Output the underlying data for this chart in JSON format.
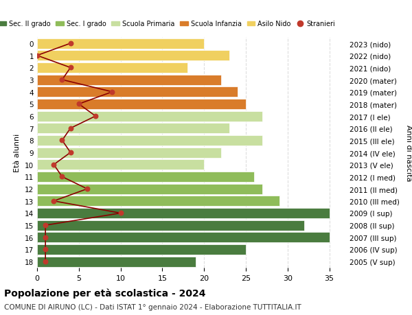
{
  "ages": [
    18,
    17,
    16,
    15,
    14,
    13,
    12,
    11,
    10,
    9,
    8,
    7,
    6,
    5,
    4,
    3,
    2,
    1,
    0
  ],
  "years": [
    "2005 (V sup)",
    "2006 (IV sup)",
    "2007 (III sup)",
    "2008 (II sup)",
    "2009 (I sup)",
    "2010 (III med)",
    "2011 (II med)",
    "2012 (I med)",
    "2013 (V ele)",
    "2014 (IV ele)",
    "2015 (III ele)",
    "2016 (II ele)",
    "2017 (I ele)",
    "2018 (mater)",
    "2019 (mater)",
    "2020 (mater)",
    "2021 (nido)",
    "2022 (nido)",
    "2023 (nido)"
  ],
  "bar_values": [
    19,
    25,
    35,
    32,
    35,
    29,
    27,
    26,
    20,
    22,
    27,
    23,
    27,
    25,
    24,
    22,
    18,
    23,
    20
  ],
  "bar_colors": [
    "#4a7c3f",
    "#4a7c3f",
    "#4a7c3f",
    "#4a7c3f",
    "#4a7c3f",
    "#8fbc5a",
    "#8fbc5a",
    "#8fbc5a",
    "#c8dfa0",
    "#c8dfa0",
    "#c8dfa0",
    "#c8dfa0",
    "#c8dfa0",
    "#d97c2a",
    "#d97c2a",
    "#d97c2a",
    "#f0d060",
    "#f0d060",
    "#f0d060"
  ],
  "stranieri_values": [
    1,
    1,
    1,
    1,
    10,
    2,
    6,
    3,
    2,
    4,
    3,
    4,
    7,
    5,
    9,
    3,
    4,
    0,
    4
  ],
  "title": "Popolazione per età scolastica - 2024",
  "subtitle": "COMUNE DI AIRUNO (LC) - Dati ISTAT 1° gennaio 2024 - Elaborazione TUTTITALIA.IT",
  "ylabel": "Età alunni",
  "ylabel2": "Anni di nascita",
  "xlim": [
    0,
    37
  ],
  "xticks": [
    0,
    5,
    10,
    15,
    20,
    25,
    30,
    35
  ],
  "legend_labels": [
    "Sec. II grado",
    "Sec. I grado",
    "Scuola Primaria",
    "Scuola Infanzia",
    "Asilo Nido",
    "Stranieri"
  ],
  "legend_colors": [
    "#4a7c3f",
    "#8fbc5a",
    "#c8dfa0",
    "#d97c2a",
    "#f0d060",
    "#c0392b"
  ],
  "stranieri_line_color": "#8b0000",
  "stranieri_dot_color": "#c0392b",
  "bar_edge_color": "white",
  "background_color": "#ffffff",
  "grid_color": "#dddddd"
}
